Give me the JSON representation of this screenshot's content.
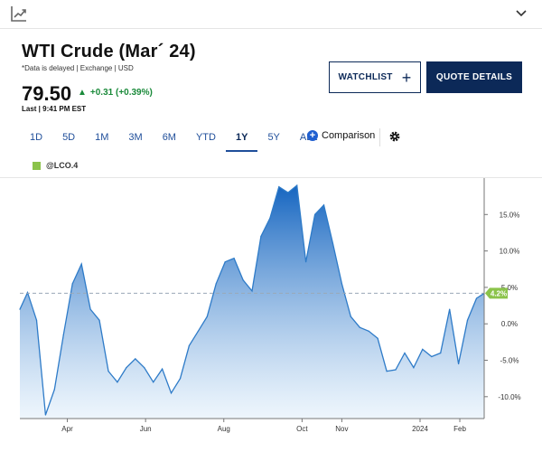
{
  "header": {
    "title": "WTI Crude (Mar´ 24)",
    "note": "*Data is delayed | Exchange | USD",
    "price": "79.50",
    "change": "+0.31 (+0.39%)",
    "last": "Last | 9:41 PM EST"
  },
  "buttons": {
    "watchlist": "WATCHLIST",
    "quote": "QUOTE DETAILS"
  },
  "ranges": [
    "1D",
    "5D",
    "1M",
    "3M",
    "6M",
    "YTD",
    "1Y",
    "5Y",
    "ALL"
  ],
  "active_range": "1Y",
  "comparison_label": "Comparison",
  "legend": {
    "symbol": "@LCO.4",
    "color": "#8bc34a"
  },
  "colors": {
    "accent": "#0c2958",
    "positive": "#1a8a3a",
    "line": "#2e7bc8",
    "fill_top": "#1565c0",
    "fill_bottom": "#e3f0fb",
    "last_tag": "#8bc34a"
  },
  "chart_data": {
    "type": "area",
    "series_name": "@LCO.4",
    "ylim": [
      -13,
      20
    ],
    "y_ticks": [
      15,
      10,
      5,
      0,
      -5,
      -10
    ],
    "y_tick_labels": [
      "15.0%",
      "10.0%",
      "5.0%",
      "0.0%",
      "-5.0%",
      "-10.0%"
    ],
    "x_tick_labels": [
      "Apr",
      "Jun",
      "Aug",
      "Oct",
      "Nov",
      "2024",
      "Feb"
    ],
    "x_tick_dates": [
      "2023-04-01",
      "2023-06-01",
      "2023-08-01",
      "2023-10-01",
      "2023-11-01",
      "2024-01-01",
      "2024-02-01"
    ],
    "last_value": 4.2,
    "last_label": "4.2%",
    "x": [
      "2023-02-23",
      "2023-03-01",
      "2023-03-08",
      "2023-03-15",
      "2023-03-22",
      "2023-03-29",
      "2023-04-05",
      "2023-04-12",
      "2023-04-19",
      "2023-04-26",
      "2023-05-03",
      "2023-05-10",
      "2023-05-17",
      "2023-05-24",
      "2023-05-31",
      "2023-06-07",
      "2023-06-14",
      "2023-06-21",
      "2023-06-28",
      "2023-07-05",
      "2023-07-12",
      "2023-07-19",
      "2023-07-26",
      "2023-08-02",
      "2023-08-09",
      "2023-08-16",
      "2023-08-23",
      "2023-08-30",
      "2023-09-06",
      "2023-09-13",
      "2023-09-20",
      "2023-09-27",
      "2023-10-04",
      "2023-10-11",
      "2023-10-18",
      "2023-10-25",
      "2023-11-01",
      "2023-11-08",
      "2023-11-15",
      "2023-11-22",
      "2023-11-29",
      "2023-12-06",
      "2023-12-13",
      "2023-12-20",
      "2023-12-27",
      "2024-01-03",
      "2024-01-10",
      "2024-01-17",
      "2024-01-24",
      "2024-01-31",
      "2024-02-07",
      "2024-02-14",
      "2024-02-20"
    ],
    "values": [
      2.0,
      4.3,
      0.5,
      -12.5,
      -9.0,
      -1.5,
      5.5,
      8.2,
      2.0,
      0.5,
      -6.5,
      -8.0,
      -6.0,
      -4.8,
      -6.0,
      -8.0,
      -6.2,
      -9.5,
      -7.5,
      -3.0,
      -1.0,
      1.0,
      5.5,
      8.5,
      9.0,
      6.0,
      4.5,
      12.0,
      14.5,
      18.8,
      18.0,
      19.0,
      8.5,
      15.0,
      16.3,
      11.0,
      5.5,
      1.0,
      -0.5,
      -1.0,
      -2.0,
      -6.5,
      -6.3,
      -4.0,
      -6.0,
      -3.5,
      -4.5,
      -4.0,
      2.0,
      -5.5,
      0.5,
      3.5,
      4.2
    ]
  }
}
